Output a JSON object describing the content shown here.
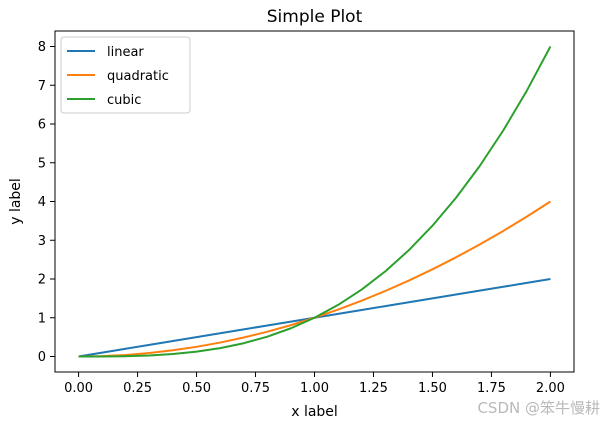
{
  "chart_data": {
    "type": "line",
    "title": "Simple Plot",
    "xlabel": "x label",
    "ylabel": "y label",
    "xlim": [
      -0.1,
      2.1
    ],
    "ylim": [
      -0.4,
      8.4
    ],
    "x_ticks": [
      "0.00",
      "0.25",
      "0.50",
      "0.75",
      "1.00",
      "1.25",
      "1.50",
      "1.75",
      "2.00"
    ],
    "y_ticks": [
      "0",
      "1",
      "2",
      "3",
      "4",
      "5",
      "6",
      "7",
      "8"
    ],
    "grid": false,
    "legend_position": "top-left",
    "x": [
      0.0,
      0.1,
      0.2,
      0.3,
      0.4,
      0.5,
      0.6,
      0.7,
      0.8,
      0.9,
      1.0,
      1.1,
      1.2,
      1.3,
      1.4,
      1.5,
      1.6,
      1.7,
      1.8,
      1.9,
      2.0
    ],
    "series": [
      {
        "name": "linear",
        "color": "#1f77b4",
        "values": [
          0.0,
          0.1,
          0.2,
          0.3,
          0.4,
          0.5,
          0.6,
          0.7,
          0.8,
          0.9,
          1.0,
          1.1,
          1.2,
          1.3,
          1.4,
          1.5,
          1.6,
          1.7,
          1.8,
          1.9,
          2.0
        ]
      },
      {
        "name": "quadratic",
        "color": "#ff7f0e",
        "values": [
          0.0,
          0.01,
          0.04,
          0.09,
          0.16,
          0.25,
          0.36,
          0.49,
          0.64,
          0.81,
          1.0,
          1.21,
          1.44,
          1.69,
          1.96,
          2.25,
          2.56,
          2.89,
          3.24,
          3.61,
          4.0
        ]
      },
      {
        "name": "cubic",
        "color": "#2ca02c",
        "values": [
          0.0,
          0.001,
          0.008,
          0.027,
          0.064,
          0.125,
          0.216,
          0.343,
          0.512,
          0.729,
          1.0,
          1.331,
          1.728,
          2.197,
          2.744,
          3.375,
          4.096,
          4.913,
          5.832,
          6.859,
          8.0
        ]
      }
    ]
  },
  "watermark": "CSDN @笨牛慢耕"
}
